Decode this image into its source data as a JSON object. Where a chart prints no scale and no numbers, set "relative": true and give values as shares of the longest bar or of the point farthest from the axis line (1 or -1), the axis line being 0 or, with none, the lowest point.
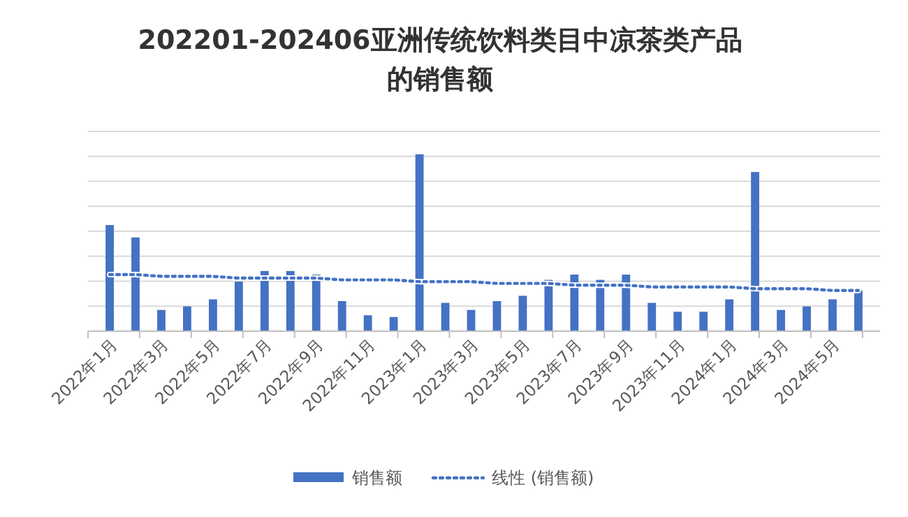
{
  "chart_data": {
    "type": "bar",
    "title": "202201-202406亚洲传统饮料类目中凉茶类产品的销售额",
    "relative": true,
    "grid": true,
    "legend": "bottom",
    "categories": [
      "2022年1月",
      null,
      "2022年3月",
      null,
      "2022年5月",
      null,
      "2022年7月",
      null,
      "2022年9月",
      null,
      "2022年11月",
      null,
      "2023年1月",
      null,
      "2023年3月",
      null,
      "2023年5月",
      null,
      "2023年7月",
      null,
      "2023年9月",
      null,
      "2023年11月",
      null,
      "2024年1月",
      null,
      "2024年3月",
      null,
      "2024年5月",
      null
    ],
    "series": [
      {
        "name": "销售额",
        "color": "#4472c4",
        "values": [
          0.6,
          0.53,
          0.12,
          0.14,
          0.18,
          0.28,
          0.34,
          0.34,
          0.32,
          0.17,
          0.09,
          0.08,
          1,
          0.16,
          0.12,
          0.17,
          0.2,
          0.29,
          0.32,
          0.29,
          0.32,
          0.16,
          0.11,
          0.11,
          0.18,
          0.9,
          0.12,
          0.14,
          0.18,
          0.23
        ]
      },
      {
        "name": "线性 (销售额)",
        "type": "line",
        "line_style": "dotted",
        "color": "#4472c4",
        "values": [
          0.32,
          0.32,
          0.31,
          0.31,
          0.31,
          0.3,
          0.3,
          0.3,
          0.3,
          0.29,
          0.29,
          0.29,
          0.28,
          0.28,
          0.28,
          0.27,
          0.27,
          0.27,
          0.26,
          0.26,
          0.26,
          0.25,
          0.25,
          0.25,
          0.25,
          0.24,
          0.24,
          0.24,
          0.23,
          0.23
        ]
      }
    ]
  }
}
